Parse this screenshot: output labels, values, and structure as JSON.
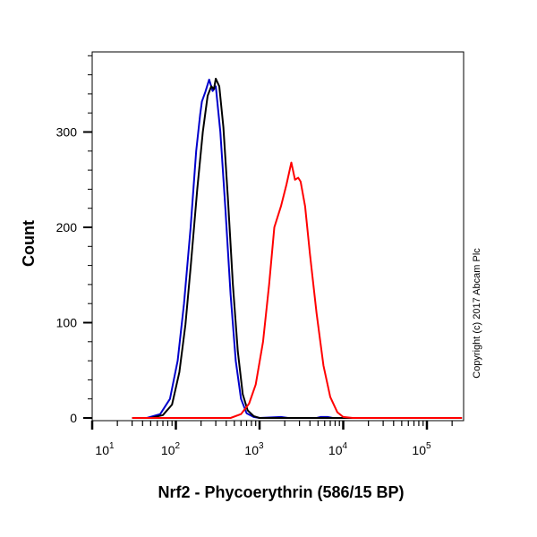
{
  "chart_data": {
    "type": "line",
    "title": "",
    "xlabel": "Nrf2 - Phycoerythrin (586/15 BP)",
    "ylabel": "Count",
    "x_scale": "log",
    "xlim": [
      10,
      262144
    ],
    "ylim": [
      0,
      382
    ],
    "x_ticks": [
      {
        "base": "10",
        "exp": "1",
        "value": 10
      },
      {
        "base": "10",
        "exp": "2",
        "value": 100
      },
      {
        "base": "10",
        "exp": "3",
        "value": 1000
      },
      {
        "base": "10",
        "exp": "4",
        "value": 10000
      },
      {
        "base": "10",
        "exp": "5",
        "value": 100000
      }
    ],
    "y_ticks": [
      "0",
      "100",
      "200",
      "300"
    ],
    "grid": false,
    "annotation": "Copyright (c) 2017 Abcam Plc",
    "series": [
      {
        "color": "#0000cc",
        "points": [
          [
            30,
            0
          ],
          [
            45,
            0
          ],
          [
            65,
            4
          ],
          [
            85,
            20
          ],
          [
            105,
            60
          ],
          [
            125,
            120
          ],
          [
            150,
            200
          ],
          [
            175,
            280
          ],
          [
            195,
            318
          ],
          [
            205,
            332
          ],
          [
            225,
            342
          ],
          [
            250,
            355
          ],
          [
            275,
            343
          ],
          [
            300,
            348
          ],
          [
            340,
            300
          ],
          [
            390,
            220
          ],
          [
            450,
            130
          ],
          [
            520,
            60
          ],
          [
            600,
            20
          ],
          [
            700,
            5
          ],
          [
            850,
            1
          ],
          [
            1000,
            0
          ],
          [
            1800,
            1
          ],
          [
            2200,
            0
          ],
          [
            4800,
            0
          ],
          [
            5400,
            1
          ],
          [
            6500,
            1
          ],
          [
            7500,
            0
          ],
          [
            262144,
            0
          ]
        ]
      },
      {
        "color": "#000000",
        "points": [
          [
            30,
            0
          ],
          [
            50,
            0
          ],
          [
            70,
            3
          ],
          [
            90,
            14
          ],
          [
            110,
            48
          ],
          [
            130,
            98
          ],
          [
            150,
            158
          ],
          [
            180,
            240
          ],
          [
            210,
            300
          ],
          [
            240,
            338
          ],
          [
            265,
            348
          ],
          [
            285,
            345
          ],
          [
            300,
            356
          ],
          [
            330,
            348
          ],
          [
            370,
            305
          ],
          [
            420,
            228
          ],
          [
            480,
            140
          ],
          [
            550,
            70
          ],
          [
            630,
            25
          ],
          [
            720,
            8
          ],
          [
            850,
            2
          ],
          [
            1000,
            0
          ],
          [
            262144,
            0
          ]
        ]
      },
      {
        "color": "#ff0000",
        "points": [
          [
            30,
            0
          ],
          [
            450,
            0
          ],
          [
            600,
            4
          ],
          [
            750,
            15
          ],
          [
            900,
            35
          ],
          [
            1100,
            80
          ],
          [
            1300,
            140
          ],
          [
            1500,
            200
          ],
          [
            1800,
            222
          ],
          [
            2100,
            245
          ],
          [
            2400,
            268
          ],
          [
            2650,
            250
          ],
          [
            2900,
            252
          ],
          [
            3100,
            248
          ],
          [
            3500,
            222
          ],
          [
            4000,
            172
          ],
          [
            4800,
            110
          ],
          [
            5800,
            55
          ],
          [
            7000,
            22
          ],
          [
            8500,
            6
          ],
          [
            10000,
            1
          ],
          [
            13000,
            0
          ],
          [
            262144,
            0
          ]
        ]
      }
    ]
  }
}
